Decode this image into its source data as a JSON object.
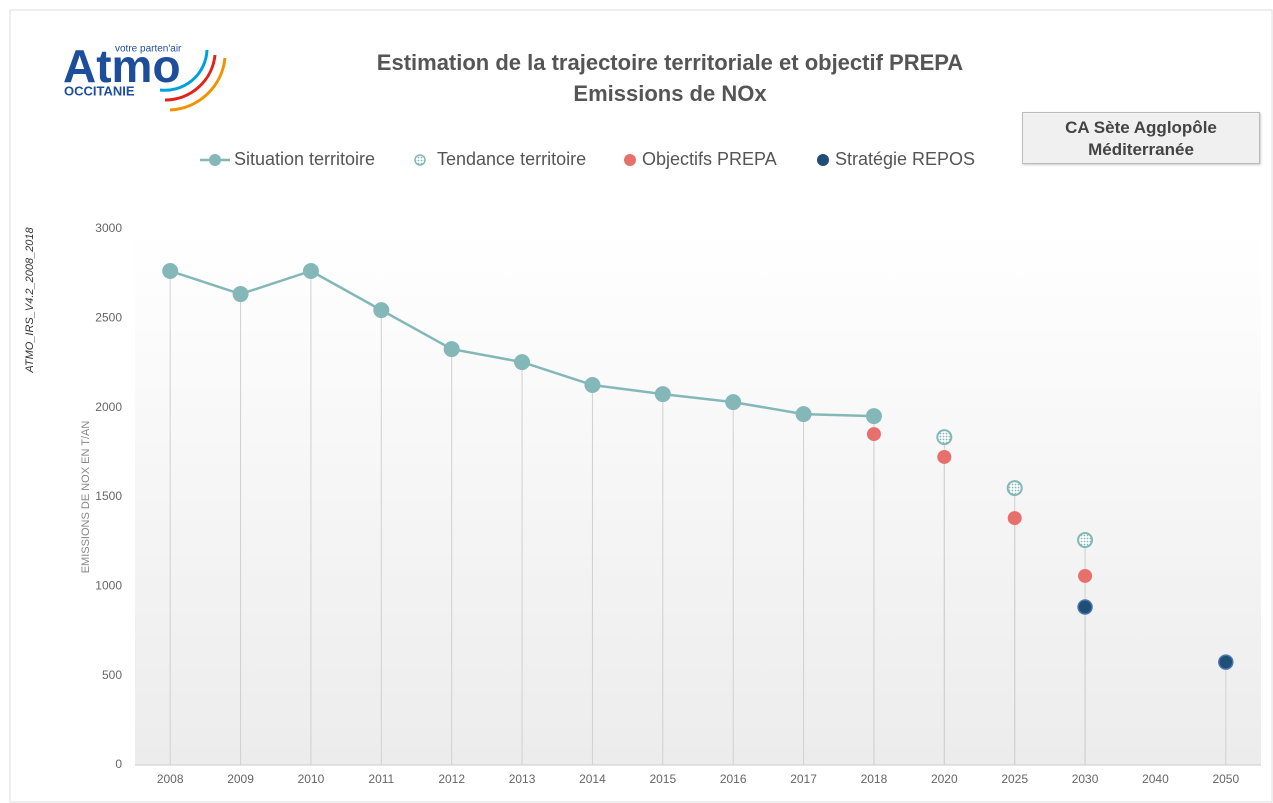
{
  "logo": {
    "name": "Atmo",
    "tagline": "votre parten'air",
    "region": "OCCITANIE"
  },
  "territory": "CA Sète Agglopôle Méditerranée",
  "source_note": "ATMO_IRS_V4.2_2008_2018",
  "chart_data": {
    "type": "line",
    "title": "Estimation de la trajectoire territoriale et objectif PREPA",
    "subtitle": "Emissions de NOx",
    "y_label": "EMISSIONS DE NOX EN T/AN",
    "categories": [
      "2008",
      "2009",
      "2010",
      "2011",
      "2012",
      "2013",
      "2014",
      "2015",
      "2016",
      "2017",
      "2018",
      "2020",
      "2025",
      "2030",
      "2040",
      "2050"
    ],
    "series": [
      {
        "name": "Situation territoire",
        "color": "#84b8b8",
        "style": "line",
        "values": [
          2765,
          2636,
          2765,
          2546,
          2328,
          2255,
          2127,
          2076,
          2031,
          1964,
          1953,
          null,
          null,
          null,
          null,
          null
        ]
      },
      {
        "name": "Tendance territoire",
        "color": "#84b8b8",
        "style": "hatched",
        "values": [
          null,
          null,
          null,
          null,
          null,
          null,
          null,
          null,
          null,
          null,
          null,
          1835,
          1550,
          1259,
          null,
          null
        ]
      },
      {
        "name": "Objectifs PREPA",
        "color": "#e8706c",
        "style": "dot",
        "values": [
          null,
          null,
          null,
          null,
          null,
          null,
          null,
          null,
          null,
          null,
          1852,
          1724,
          1382,
          1058,
          null,
          null
        ]
      },
      {
        "name": "Stratégie REPOS",
        "color": "#1f4e79",
        "style": "dot",
        "values": [
          null,
          null,
          null,
          null,
          null,
          null,
          null,
          null,
          null,
          null,
          null,
          null,
          null,
          884,
          null,
          576
        ]
      }
    ],
    "ylim": [
      0,
      3000
    ],
    "yticks": [
      0,
      500,
      1000,
      1500,
      2000,
      2500,
      3000
    ],
    "legend": "top",
    "drop_lines": true
  }
}
